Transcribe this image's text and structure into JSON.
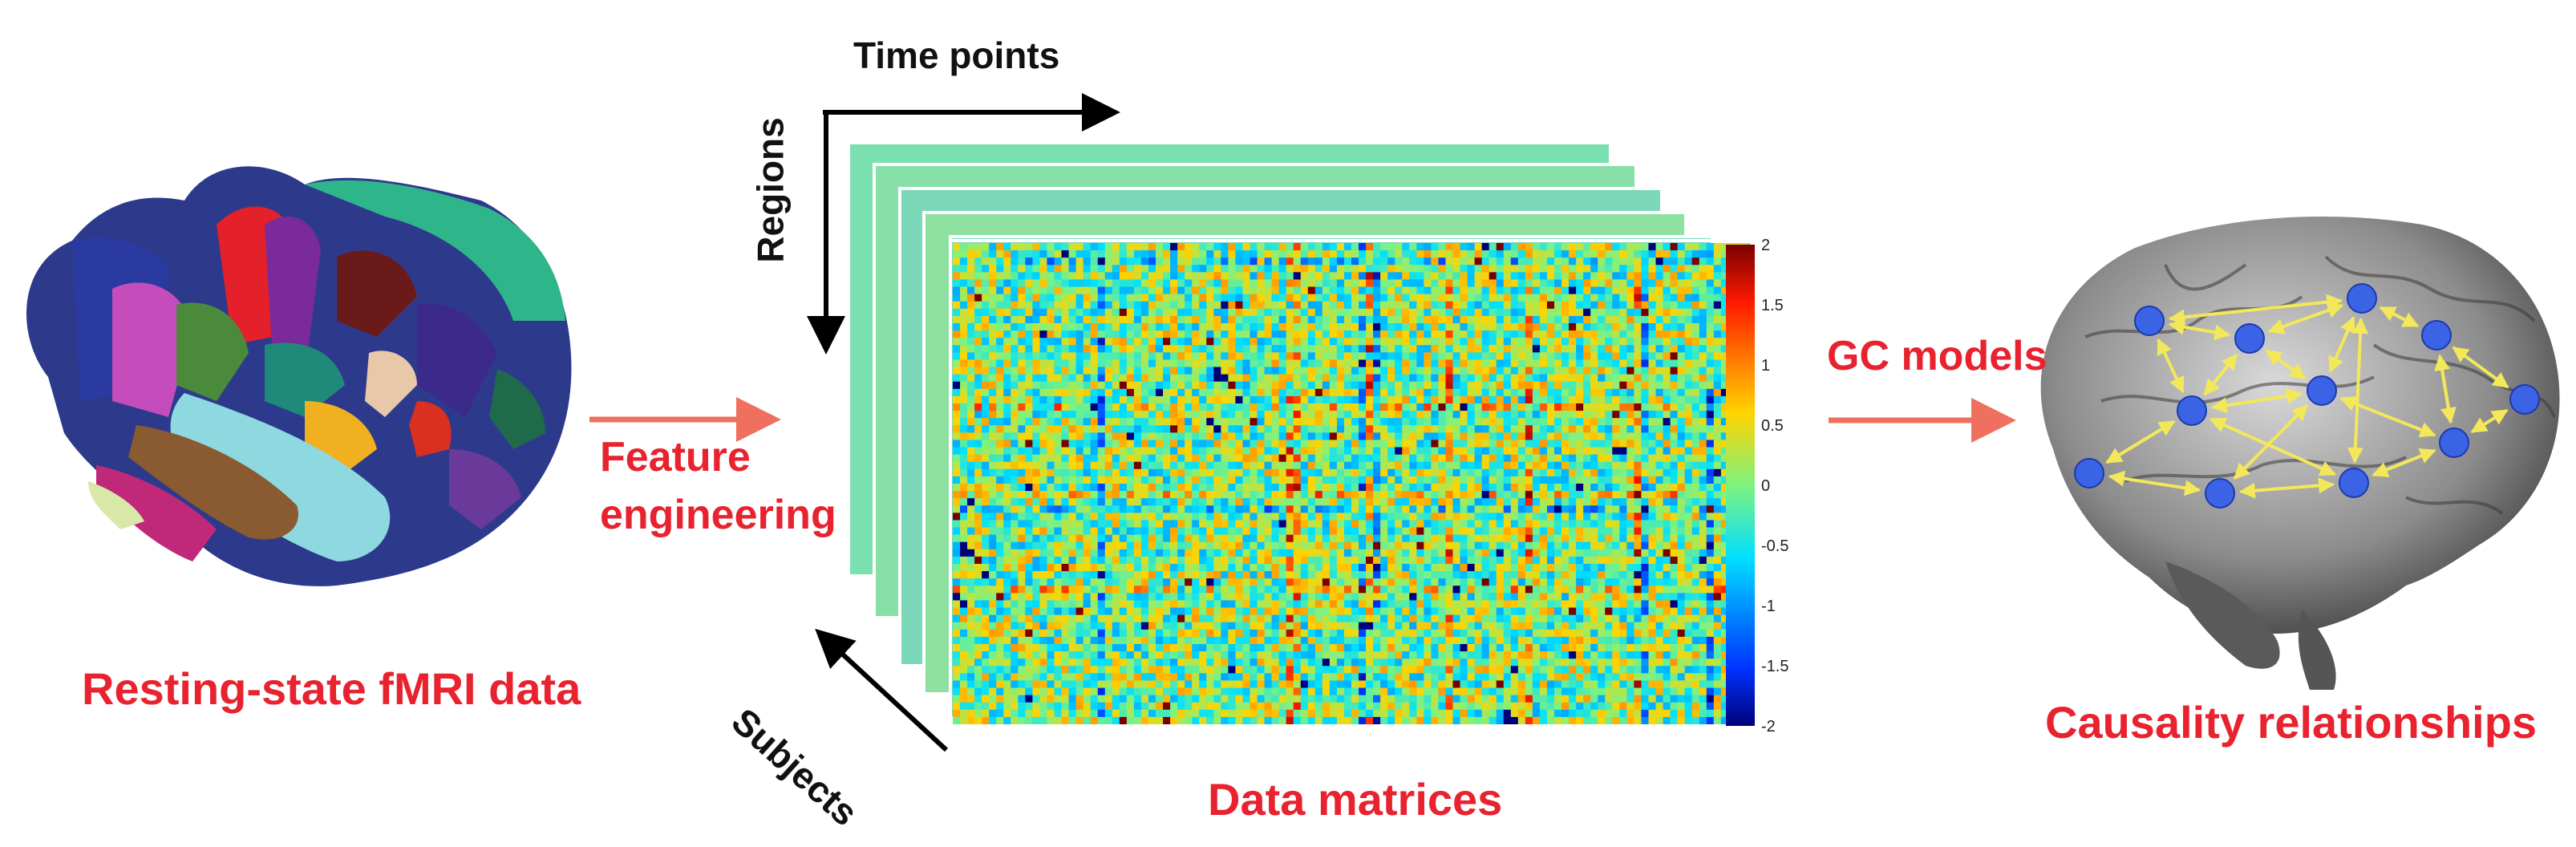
{
  "labels": {
    "left_caption": "Resting-state fMRI data",
    "feature_line1": "Feature",
    "feature_line2": "engineering",
    "time_points": "Time points",
    "regions": "Regions",
    "subjects": "Subjects",
    "matrices_caption": "Data matrices",
    "gc_models": "GC models",
    "right_caption": "Causality relationships"
  },
  "colorbar": {
    "ticks": [
      "2",
      "1.5",
      "1",
      "0.5",
      "0",
      "-0.5",
      "-1",
      "-1.5",
      "-2"
    ]
  },
  "colors": {
    "accent_red": "#e8222e",
    "arrow_salmon": "#f07060",
    "node_blue": "#3b63e6",
    "edge_yellow": "#f2e85a"
  }
}
